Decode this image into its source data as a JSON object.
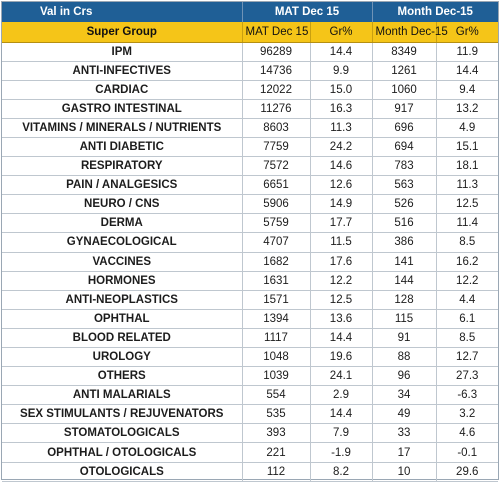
{
  "header": {
    "label": "Val in Crs",
    "group1": "MAT Dec 15",
    "group2": "Month Dec-15",
    "col_super_group": "Super Group",
    "col_mat": "MAT Dec 15",
    "col_mat_gr": "Gr%",
    "col_month": "Month Dec-15",
    "col_month_gr": "Gr%"
  },
  "rows": [
    {
      "name": "IPM",
      "mat": "96289",
      "mat_gr": "14.4",
      "month": "8349",
      "month_gr": "11.9"
    },
    {
      "name": "ANTI-INFECTIVES",
      "mat": "14736",
      "mat_gr": "9.9",
      "month": "1261",
      "month_gr": "14.4"
    },
    {
      "name": "CARDIAC",
      "mat": "12022",
      "mat_gr": "15.0",
      "month": "1060",
      "month_gr": "9.4"
    },
    {
      "name": "GASTRO INTESTINAL",
      "mat": "11276",
      "mat_gr": "16.3",
      "month": "917",
      "month_gr": "13.2"
    },
    {
      "name": "VITAMINS / MINERALS / NUTRIENTS",
      "mat": "8603",
      "mat_gr": "11.3",
      "month": "696",
      "month_gr": "4.9"
    },
    {
      "name": "ANTI DIABETIC",
      "mat": "7759",
      "mat_gr": "24.2",
      "month": "694",
      "month_gr": "15.1"
    },
    {
      "name": "RESPIRATORY",
      "mat": "7572",
      "mat_gr": "14.6",
      "month": "783",
      "month_gr": "18.1"
    },
    {
      "name": "PAIN / ANALGESICS",
      "mat": "6651",
      "mat_gr": "12.6",
      "month": "563",
      "month_gr": "11.3"
    },
    {
      "name": "NEURO / CNS",
      "mat": "5906",
      "mat_gr": "14.9",
      "month": "526",
      "month_gr": "12.5"
    },
    {
      "name": "DERMA",
      "mat": "5759",
      "mat_gr": "17.7",
      "month": "516",
      "month_gr": "11.4"
    },
    {
      "name": "GYNAECOLOGICAL",
      "mat": "4707",
      "mat_gr": "11.5",
      "month": "386",
      "month_gr": "8.5"
    },
    {
      "name": "VACCINES",
      "mat": "1682",
      "mat_gr": "17.6",
      "month": "141",
      "month_gr": "16.2"
    },
    {
      "name": "HORMONES",
      "mat": "1631",
      "mat_gr": "12.2",
      "month": "144",
      "month_gr": "12.2"
    },
    {
      "name": "ANTI-NEOPLASTICS",
      "mat": "1571",
      "mat_gr": "12.5",
      "month": "128",
      "month_gr": "4.4"
    },
    {
      "name": "OPHTHAL",
      "mat": "1394",
      "mat_gr": "13.6",
      "month": "115",
      "month_gr": "6.1"
    },
    {
      "name": "BLOOD RELATED",
      "mat": "1117",
      "mat_gr": "14.4",
      "month": "91",
      "month_gr": "8.5"
    },
    {
      "name": "UROLOGY",
      "mat": "1048",
      "mat_gr": "19.6",
      "month": "88",
      "month_gr": "12.7"
    },
    {
      "name": "OTHERS",
      "mat": "1039",
      "mat_gr": "24.1",
      "month": "96",
      "month_gr": "27.3"
    },
    {
      "name": "ANTI MALARIALS",
      "mat": "554",
      "mat_gr": "2.9",
      "month": "34",
      "month_gr": "-6.3"
    },
    {
      "name": "SEX STIMULANTS / REJUVENATORS",
      "mat": "535",
      "mat_gr": "14.4",
      "month": "49",
      "month_gr": "3.2"
    },
    {
      "name": "STOMATOLOGICALS",
      "mat": "393",
      "mat_gr": "7.9",
      "month": "33",
      "month_gr": "4.6"
    },
    {
      "name": "OPHTHAL / OTOLOGICALS",
      "mat": "221",
      "mat_gr": "-1.9",
      "month": "17",
      "month_gr": "-0.1"
    },
    {
      "name": "OTOLOGICALS",
      "mat": "112",
      "mat_gr": "8.2",
      "month": "10",
      "month_gr": "29.6"
    }
  ]
}
